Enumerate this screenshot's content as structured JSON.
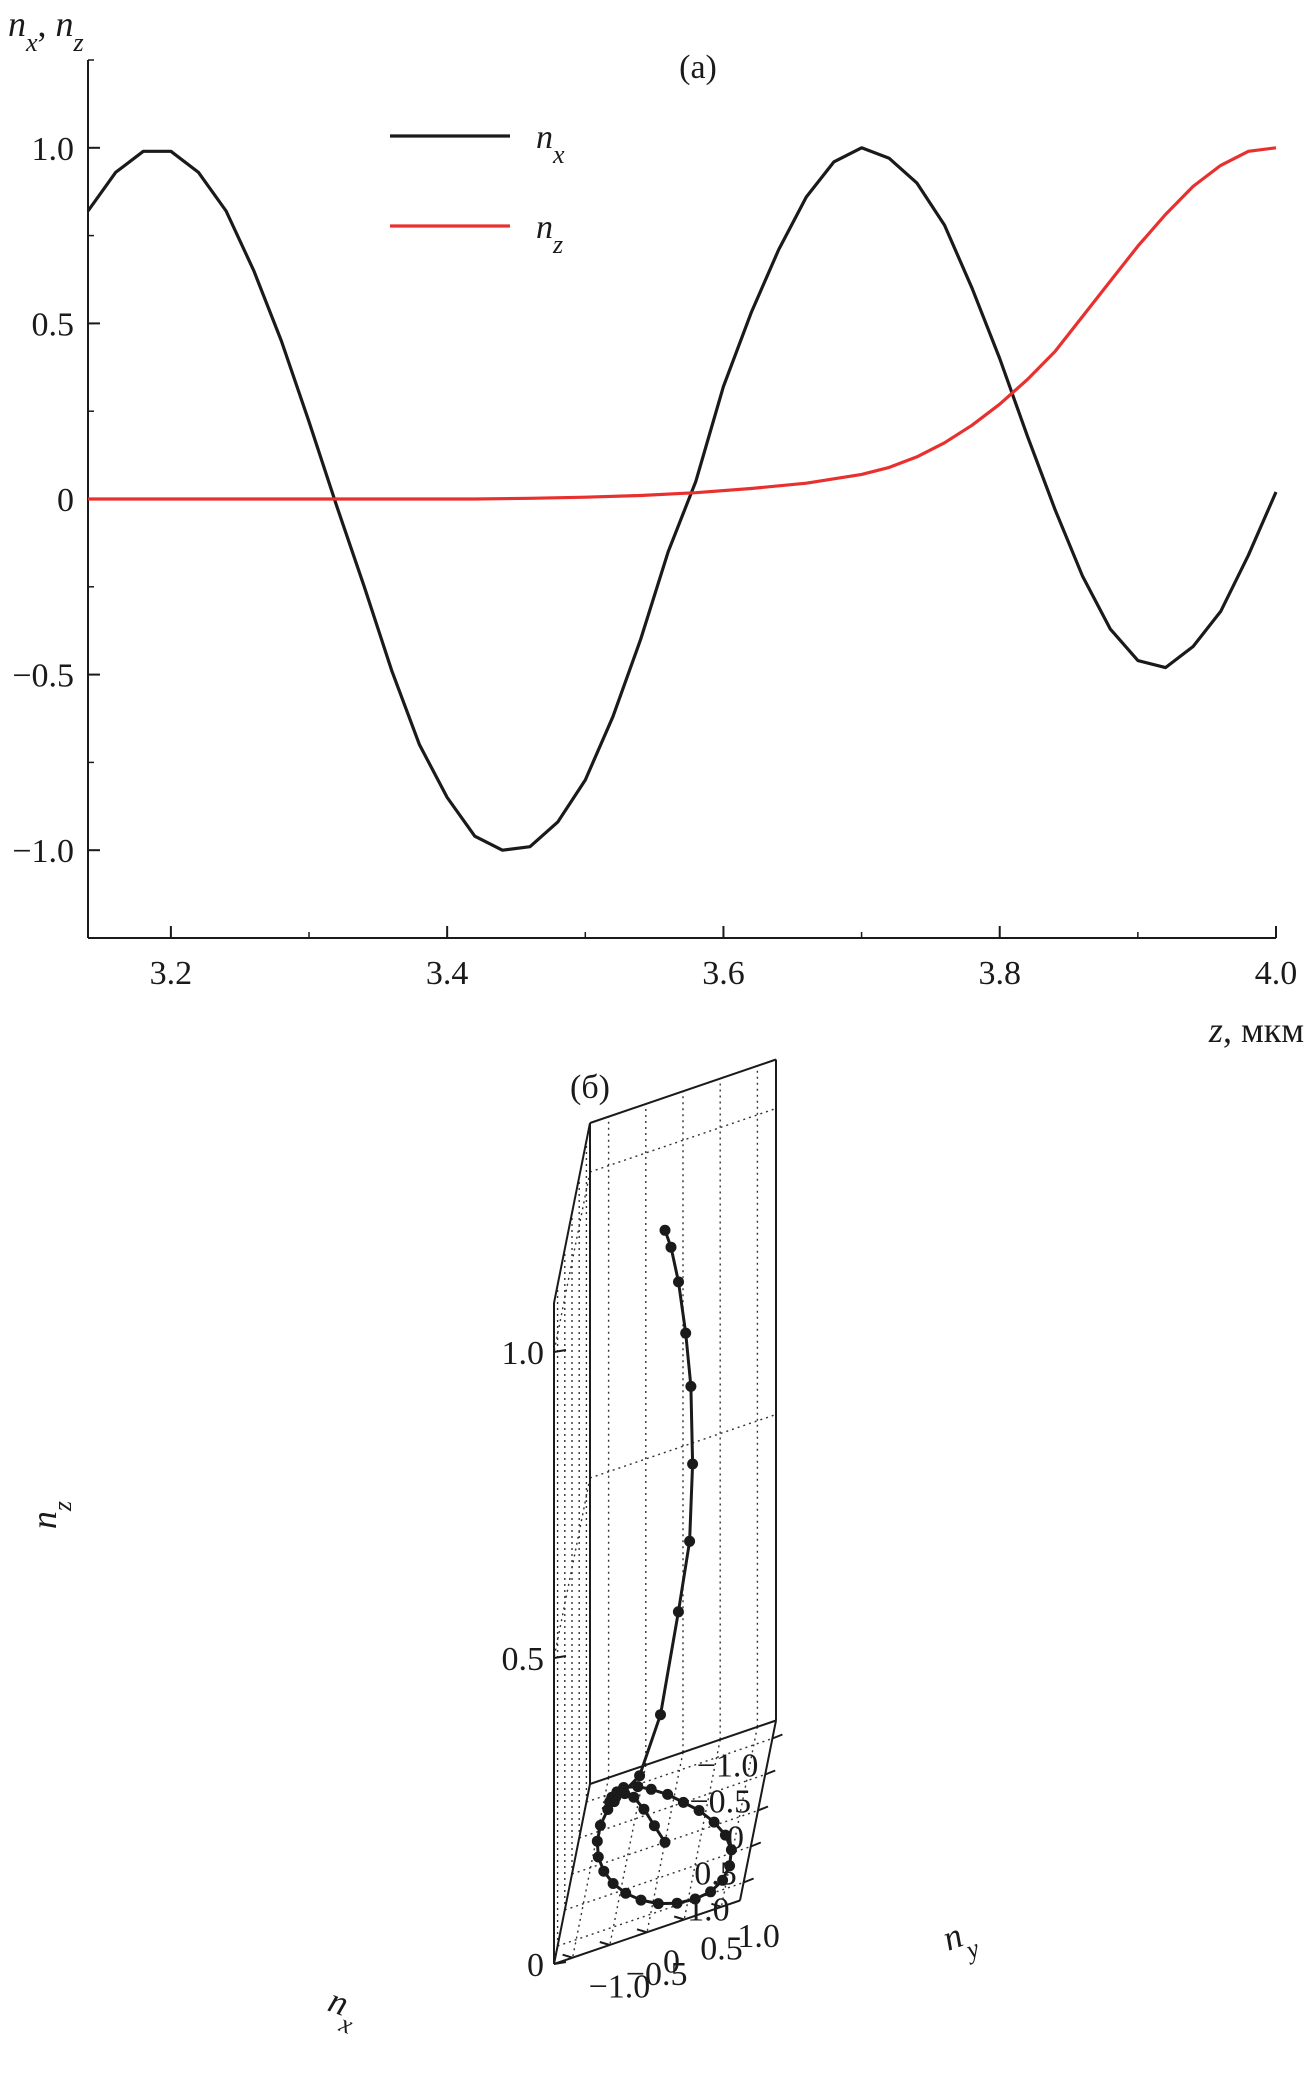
{
  "figure": {
    "panel_a_label": "(a)",
    "panel_b_label": "(б)"
  },
  "chart_data": [
    {
      "type": "line",
      "panel": "(a)",
      "ylabel": "n_x, n_z",
      "xlabel": "z, мкм",
      "xlim": [
        3.14,
        4.0
      ],
      "ylim": [
        -1.25,
        1.25
      ],
      "x_ticks": [
        3.2,
        3.4,
        3.6,
        3.8,
        4.0
      ],
      "x_tick_labels": [
        "3.2",
        "3.4",
        "3.6",
        "3.8",
        "4.0"
      ],
      "y_ticks": [
        1.0,
        0.5,
        0,
        -0.5,
        -1.0
      ],
      "y_tick_labels": [
        "1.0",
        "0.5",
        "0",
        "−0.5",
        "−1.0"
      ],
      "grid": false,
      "legend_position": "top-center",
      "series": [
        {
          "name": "n_x",
          "legend_text": "n",
          "legend_sub": "x",
          "color": "#1a1a1a",
          "x": [
            3.14,
            3.16,
            3.18,
            3.2,
            3.22,
            3.24,
            3.26,
            3.28,
            3.3,
            3.32,
            3.34,
            3.36,
            3.38,
            3.4,
            3.42,
            3.44,
            3.46,
            3.48,
            3.5,
            3.52,
            3.54,
            3.56,
            3.58,
            3.6,
            3.62,
            3.64,
            3.66,
            3.68,
            3.7,
            3.72,
            3.74,
            3.76,
            3.78,
            3.8,
            3.82,
            3.84,
            3.86,
            3.88,
            3.9,
            3.92,
            3.94,
            3.96,
            3.98,
            4.0
          ],
          "y": [
            0.82,
            0.93,
            0.99,
            0.99,
            0.93,
            0.82,
            0.65,
            0.45,
            0.22,
            -0.02,
            -0.25,
            -0.49,
            -0.7,
            -0.85,
            -0.96,
            -1.0,
            -0.99,
            -0.92,
            -0.8,
            -0.62,
            -0.4,
            -0.15,
            0.05,
            0.32,
            0.53,
            0.71,
            0.86,
            0.96,
            1.0,
            0.97,
            0.9,
            0.78,
            0.6,
            0.4,
            0.18,
            -0.03,
            -0.22,
            -0.37,
            -0.46,
            -0.48,
            -0.42,
            -0.32,
            -0.16,
            0.02
          ]
        },
        {
          "name": "n_z",
          "legend_text": "n",
          "legend_sub": "z",
          "color": "#e8312f",
          "x": [
            3.14,
            3.2,
            3.26,
            3.3,
            3.34,
            3.38,
            3.42,
            3.46,
            3.5,
            3.54,
            3.58,
            3.62,
            3.66,
            3.7,
            3.72,
            3.74,
            3.76,
            3.78,
            3.8,
            3.82,
            3.84,
            3.86,
            3.88,
            3.9,
            3.92,
            3.94,
            3.96,
            3.98,
            4.0
          ],
          "y": [
            0,
            0,
            0,
            0,
            0,
            0,
            0,
            0.002,
            0.005,
            0.01,
            0.018,
            0.03,
            0.045,
            0.07,
            0.09,
            0.12,
            0.16,
            0.21,
            0.27,
            0.34,
            0.42,
            0.52,
            0.62,
            0.72,
            0.81,
            0.89,
            0.95,
            0.99,
            1.0
          ]
        }
      ]
    },
    {
      "type": "scatter",
      "panel": "(б)",
      "projection": "3d",
      "xlabel": "n_x",
      "ylabel": "n_y",
      "zlabel": "n_z",
      "xlim": [
        -1.25,
        1.25
      ],
      "ylim": [
        -1.25,
        1.25
      ],
      "zlim": [
        0,
        1.0
      ],
      "x_ticks": [
        -1.0,
        -0.5,
        0,
        0.5,
        1.0
      ],
      "x_tick_labels": [
        "−1.0",
        "−0.5",
        "0",
        "0.5",
        "1.0"
      ],
      "y_ticks": [
        -1.0,
        -0.5,
        0,
        0.5,
        1.0
      ],
      "y_tick_labels": [
        "−1.0",
        "−0.5",
        "0",
        "0.5",
        "1.0"
      ],
      "z_ticks": [
        0,
        0.5,
        1.0
      ],
      "z_tick_labels": [
        "0",
        "0.5",
        "1.0"
      ],
      "grid": true,
      "series": [
        {
          "color": "#1a1a1a",
          "markers": true,
          "points": [
            {
              "x": 0.0,
              "y": 0.0,
              "z": 1.0
            },
            {
              "x": 0.1,
              "y": 0.1,
              "z": 0.98
            },
            {
              "x": 0.2,
              "y": 0.22,
              "z": 0.93
            },
            {
              "x": 0.27,
              "y": 0.33,
              "z": 0.85
            },
            {
              "x": 0.27,
              "y": 0.4,
              "z": 0.76
            },
            {
              "x": 0.25,
              "y": 0.42,
              "z": 0.63
            },
            {
              "x": 0.2,
              "y": 0.37,
              "z": 0.5
            },
            {
              "x": 0.1,
              "y": 0.2,
              "z": 0.38
            },
            {
              "x": -0.1,
              "y": -0.08,
              "z": 0.2
            },
            {
              "x": -0.3,
              "y": -0.4,
              "z": 0.09
            },
            {
              "x": -0.5,
              "y": -0.78,
              "z": 0.04
            },
            {
              "x": -0.7,
              "y": -0.88,
              "z": 0.02
            },
            {
              "x": -0.85,
              "y": -0.88,
              "z": 0.01
            },
            {
              "x": -0.95,
              "y": -0.83,
              "z": 0.005
            },
            {
              "x": -1.0,
              "y": -0.75,
              "z": 0.003
            },
            {
              "x": -0.95,
              "y": -0.55,
              "z": 0.002
            },
            {
              "x": -0.85,
              "y": -0.35,
              "z": 0.001
            },
            {
              "x": -0.7,
              "y": -0.1,
              "z": 0
            },
            {
              "x": -0.5,
              "y": 0.15,
              "z": 0
            },
            {
              "x": -0.3,
              "y": 0.4,
              "z": 0
            },
            {
              "x": -0.05,
              "y": 0.65,
              "z": 0
            },
            {
              "x": 0.2,
              "y": 0.85,
              "z": 0
            },
            {
              "x": 0.45,
              "y": 0.98,
              "z": 0
            },
            {
              "x": 0.68,
              "y": 1.0,
              "z": 0
            },
            {
              "x": 0.86,
              "y": 0.94,
              "z": 0
            },
            {
              "x": 0.97,
              "y": 0.8,
              "z": 0
            },
            {
              "x": 1.0,
              "y": 0.6,
              "z": 0
            },
            {
              "x": 0.97,
              "y": 0.35,
              "z": 0
            },
            {
              "x": 0.88,
              "y": 0.08,
              "z": 0
            },
            {
              "x": 0.74,
              "y": -0.18,
              "z": 0
            },
            {
              "x": 0.56,
              "y": -0.42,
              "z": 0
            },
            {
              "x": 0.35,
              "y": -0.63,
              "z": 0
            },
            {
              "x": 0.12,
              "y": -0.8,
              "z": 0
            },
            {
              "x": -0.12,
              "y": -0.92,
              "z": 0
            },
            {
              "x": -0.36,
              "y": -0.98,
              "z": 0
            },
            {
              "x": -0.58,
              "y": -0.98,
              "z": 0
            },
            {
              "x": -0.78,
              "y": -0.92,
              "z": 0
            },
            {
              "x": -0.92,
              "y": -0.84,
              "z": 0
            },
            {
              "x": -0.93,
              "y": -0.72,
              "z": 0
            },
            {
              "x": -0.83,
              "y": -0.58,
              "z": 0
            },
            {
              "x": -0.6,
              "y": -0.4,
              "z": 0
            },
            {
              "x": -0.3,
              "y": -0.2,
              "z": 0
            },
            {
              "x": 0.0,
              "y": 0.0,
              "z": 0
            }
          ]
        }
      ]
    }
  ]
}
